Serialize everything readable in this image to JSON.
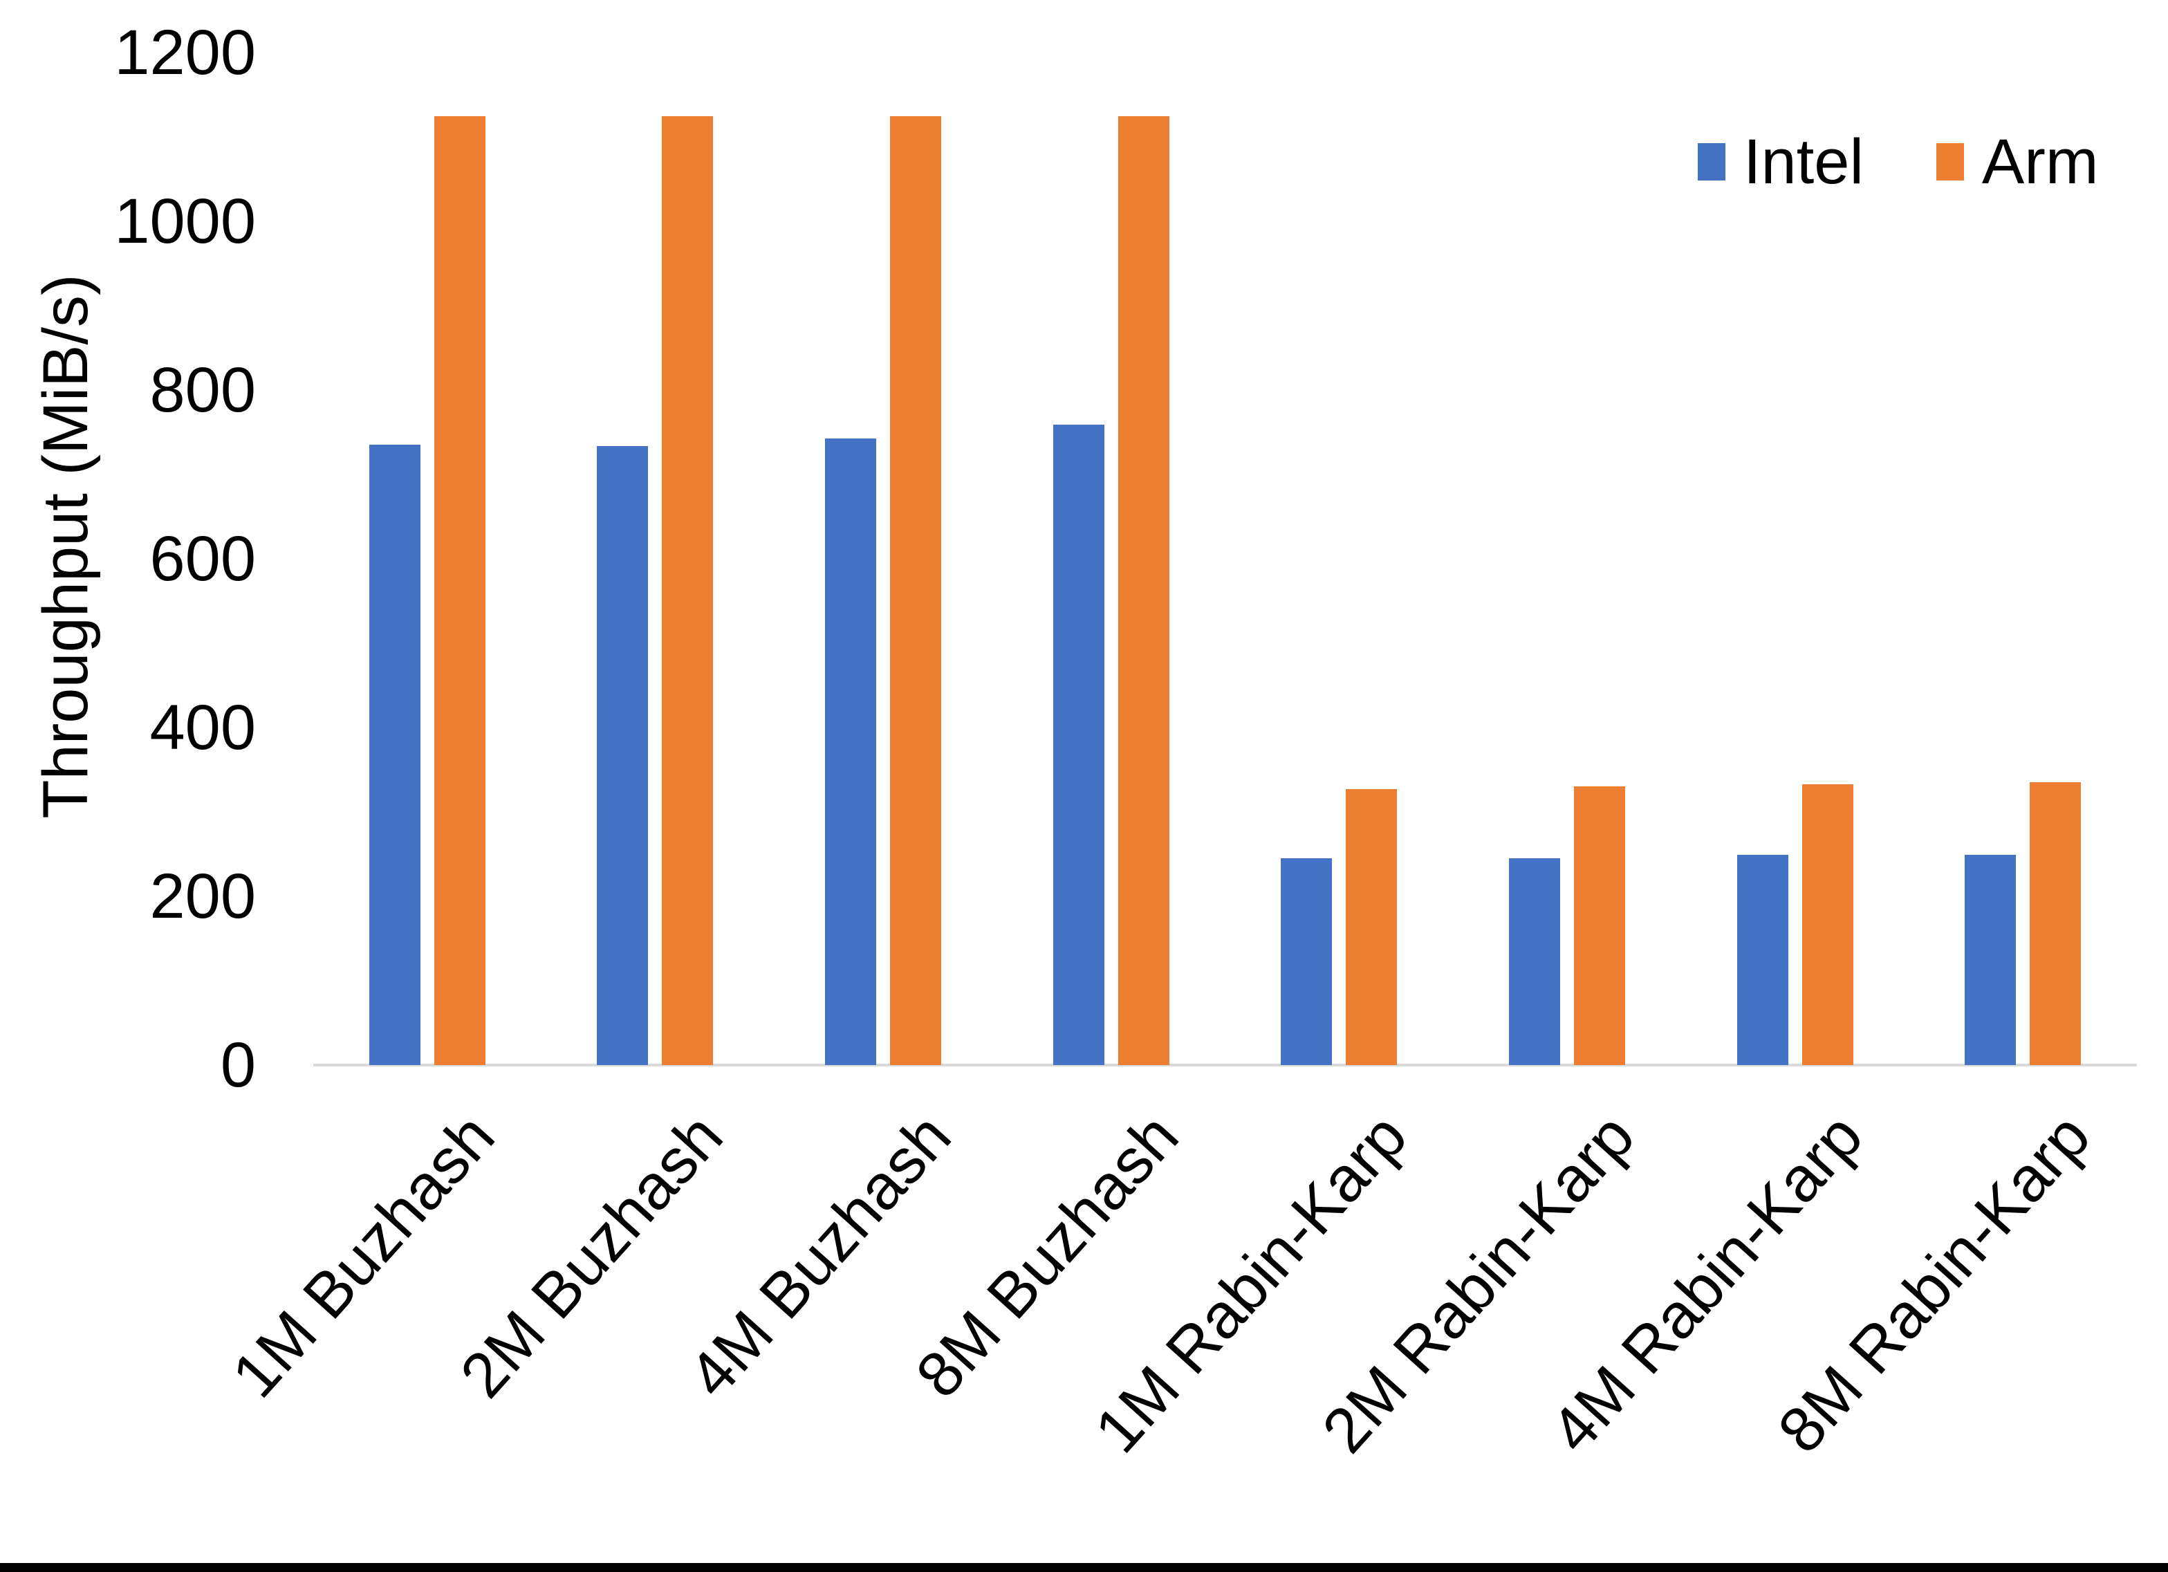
{
  "chart_data": {
    "type": "bar",
    "title": "",
    "xlabel": "",
    "ylabel": "Throughput (MiB/s)",
    "ylim": [
      0,
      1200
    ],
    "yticks": [
      0,
      200,
      400,
      600,
      800,
      1000,
      1200
    ],
    "grid": false,
    "legend_position": "top-right",
    "categories": [
      "1M Buzhash",
      "2M Buzhash",
      "4M Buzhash",
      "8M Buzhash",
      "1M Rabin-Karp",
      "2M Rabin-Karp",
      "4M Rabin-Karp",
      "8M Rabin-Karp"
    ],
    "series": [
      {
        "name": "Intel",
        "color": "#4472C4",
        "values": [
          735,
          734,
          743,
          759,
          245,
          245,
          249,
          249
        ]
      },
      {
        "name": "Arm",
        "color": "#ED7D31",
        "values": [
          1125,
          1125,
          1125,
          1125,
          327,
          330,
          333,
          335
        ]
      }
    ]
  },
  "colors": {
    "background": "#FFFFFF",
    "axis_line": "#D9D9D9",
    "text": "#000000",
    "bottom_border": "#000000"
  }
}
